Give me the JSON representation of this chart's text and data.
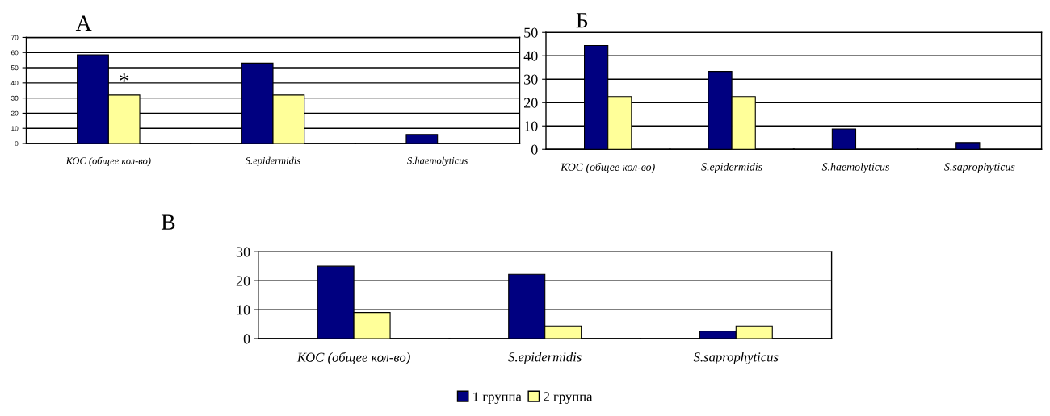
{
  "chart_data": [
    {
      "type": "bar",
      "title": "А",
      "categories": [
        "КОС (общее кол-во)",
        "S.epidermidis",
        "S.haemolyticus"
      ],
      "series": [
        {
          "color": "#000080",
          "values": [
            58.5,
            53,
            6
          ]
        },
        {
          "color": "#ffff99",
          "values": [
            32,
            32,
            null
          ]
        }
      ],
      "ylim": [
        0,
        70
      ],
      "yticks": [
        0,
        10,
        20,
        30,
        40,
        50,
        60,
        70
      ],
      "grid": "y",
      "annotations": [
        {
          "text": "*",
          "x": "КОС (общее кол-во)",
          "y": 40
        }
      ]
    },
    {
      "type": "bar",
      "title": "Б",
      "categories": [
        "КОС (общее кол-во)",
        "S.epidermidis",
        "S.haemolyticus",
        "S.saprophyticus"
      ],
      "series": [
        {
          "color": "#000080",
          "values": [
            44.4,
            33.3,
            8.7,
            2.9
          ]
        },
        {
          "color": "#ffff99",
          "values": [
            22.6,
            22.6,
            null,
            null
          ]
        }
      ],
      "ylim": [
        0,
        50
      ],
      "yticks": [
        0,
        10,
        20,
        30,
        40,
        50
      ],
      "grid": "y"
    },
    {
      "type": "bar",
      "title": "В",
      "categories": [
        "КОС (общее кол-во)",
        "S.epidermidis",
        "S.saprophyticus"
      ],
      "series": [
        {
          "name": "1 группа",
          "color": "#000080",
          "values": [
            25,
            22.2,
            2.6
          ]
        },
        {
          "name": "2 группа",
          "color": "#ffff99",
          "values": [
            9,
            4.4,
            4.4
          ]
        }
      ],
      "ylim": [
        0,
        30
      ],
      "yticks": [
        0,
        10,
        20,
        30
      ],
      "grid": "y",
      "legend": "bottom"
    }
  ]
}
